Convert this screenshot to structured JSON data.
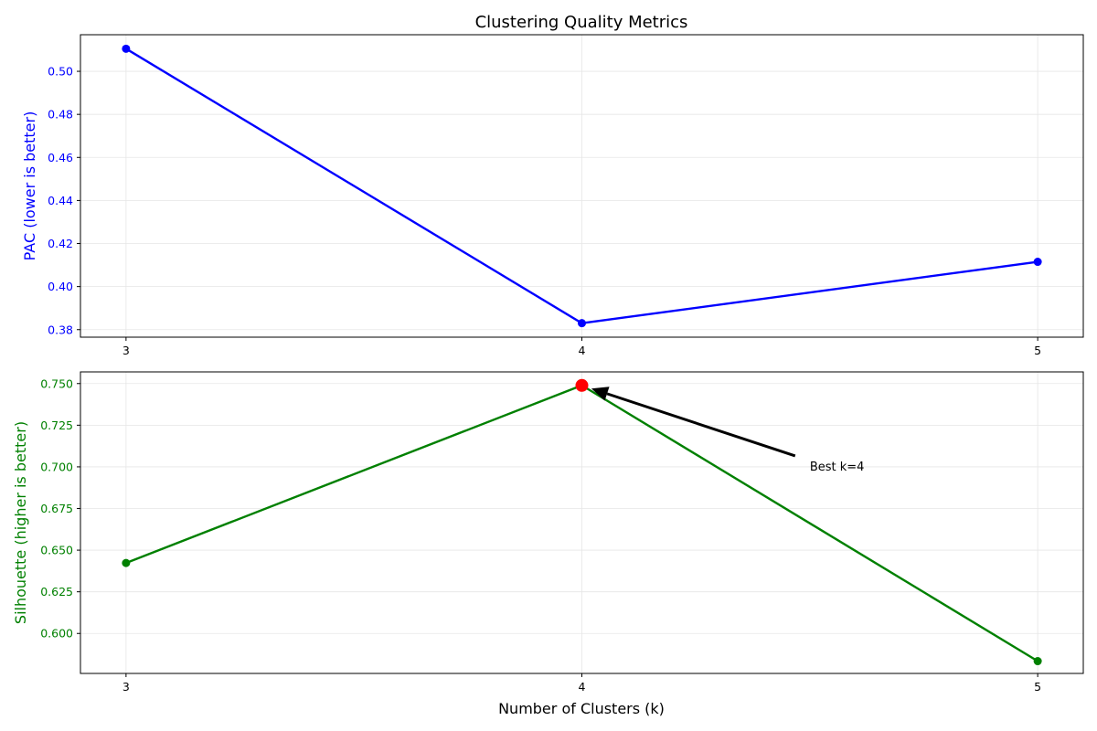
{
  "figure": {
    "title": "Clustering Quality Metrics",
    "xlabel": "Number of Clusters (k)"
  },
  "chart_data": [
    {
      "type": "line",
      "title": "Clustering Quality Metrics",
      "xlabel": "",
      "ylabel": "PAC (lower is better)",
      "x": [
        3,
        4,
        5
      ],
      "xticks": [
        "3",
        "4",
        "5"
      ],
      "series": [
        {
          "values": [
            0.5105,
            0.383,
            0.4115
          ],
          "color": "#0000ff",
          "marker": "circle"
        }
      ],
      "ylim": [
        0.3765,
        0.517
      ],
      "yticks": [
        0.38,
        0.4,
        0.42,
        0.44,
        0.46,
        0.48,
        0.5
      ],
      "ytick_decimals": 2,
      "axis_color": "#0000ff",
      "grid": true
    },
    {
      "type": "line",
      "title": "",
      "xlabel": "Number of Clusters (k)",
      "ylabel": "Silhouette (higher is better)",
      "x": [
        3,
        4,
        5
      ],
      "xticks": [
        "3",
        "4",
        "5"
      ],
      "series": [
        {
          "values": [
            0.6423,
            0.7489,
            0.5834
          ],
          "color": "#008000",
          "marker": "circle"
        }
      ],
      "ylim": [
        0.576,
        0.757
      ],
      "yticks": [
        0.6,
        0.625,
        0.65,
        0.675,
        0.7,
        0.725,
        0.75
      ],
      "ytick_decimals": 3,
      "axis_color": "#008000",
      "grid": true,
      "highlight": {
        "x": 4,
        "y": 0.7489,
        "color": "#ff0000"
      },
      "annotations": [
        {
          "text": "Best k=4",
          "point_x": 4,
          "point_y": 0.7489,
          "text_x": 4.5,
          "text_y": 0.7
        }
      ]
    }
  ]
}
